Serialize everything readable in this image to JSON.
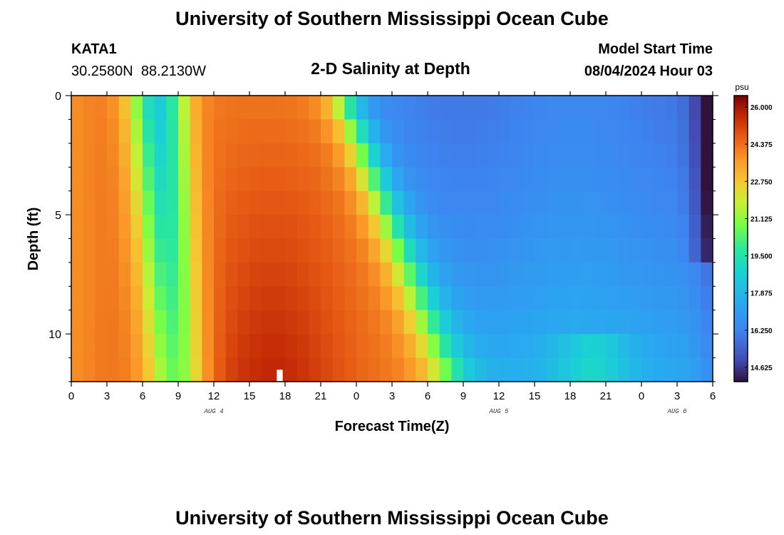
{
  "header": {
    "title": "University of Southern Mississippi Ocean Cube",
    "station_id": "KATA1",
    "station_coords": "30.2580N  88.2130W",
    "chart_title": "2-D Salinity at Depth",
    "model_start_label": "Model Start Time",
    "model_start_value": "08/04/2024 Hour 03"
  },
  "footer": {
    "title": "University of Southern Mississippi Ocean Cube"
  },
  "chart_data": {
    "type": "heatmap",
    "title": "2-D Salinity at Depth",
    "xlabel": "Forecast Time(Z)",
    "ylabel": "Depth (ft)",
    "x_unit": "hours since Aug 4 00Z",
    "xlim": [
      0,
      54
    ],
    "ylim": [
      0,
      12
    ],
    "x_ticks": [
      0,
      3,
      6,
      9,
      12,
      15,
      18,
      21,
      24,
      27,
      30,
      33,
      36,
      39,
      42,
      45,
      48,
      51,
      54
    ],
    "x_tick_labels": [
      "0",
      "3",
      "6",
      "9",
      "12",
      "15",
      "18",
      "21",
      "0",
      "3",
      "6",
      "9",
      "12",
      "15",
      "18",
      "21",
      "0",
      "3",
      "6"
    ],
    "y_ticks": [
      0,
      5,
      10
    ],
    "y_tick_labels": [
      "0",
      "5",
      "10"
    ],
    "date_labels": [
      {
        "hour": 12,
        "text": "AUG 4"
      },
      {
        "hour": 36,
        "text": "AUG 5"
      },
      {
        "hour": 51,
        "text": "AUG 6"
      }
    ],
    "colorbar": {
      "unit": "psu",
      "min": 14,
      "max": 26.5,
      "ticks": [
        26.0,
        24.375,
        22.75,
        21.125,
        19.5,
        17.875,
        16.25,
        14.625
      ],
      "tick_labels": [
        "26.000",
        "24.375",
        "22.750",
        "21.125",
        "19.500",
        "17.875",
        "16.250",
        "14.625"
      ]
    },
    "depth_levels": [
      0.5,
      1.5,
      2.5,
      3.5,
      4.5,
      5.5,
      6.5,
      7.5,
      8.5,
      9.5,
      10.5,
      11.5
    ],
    "time_step_hours": 1,
    "masked_regions": [
      {
        "hour_start": 17.3,
        "hour_end": 17.8,
        "depth_start": 11.5,
        "depth_end": 12
      }
    ]
  }
}
